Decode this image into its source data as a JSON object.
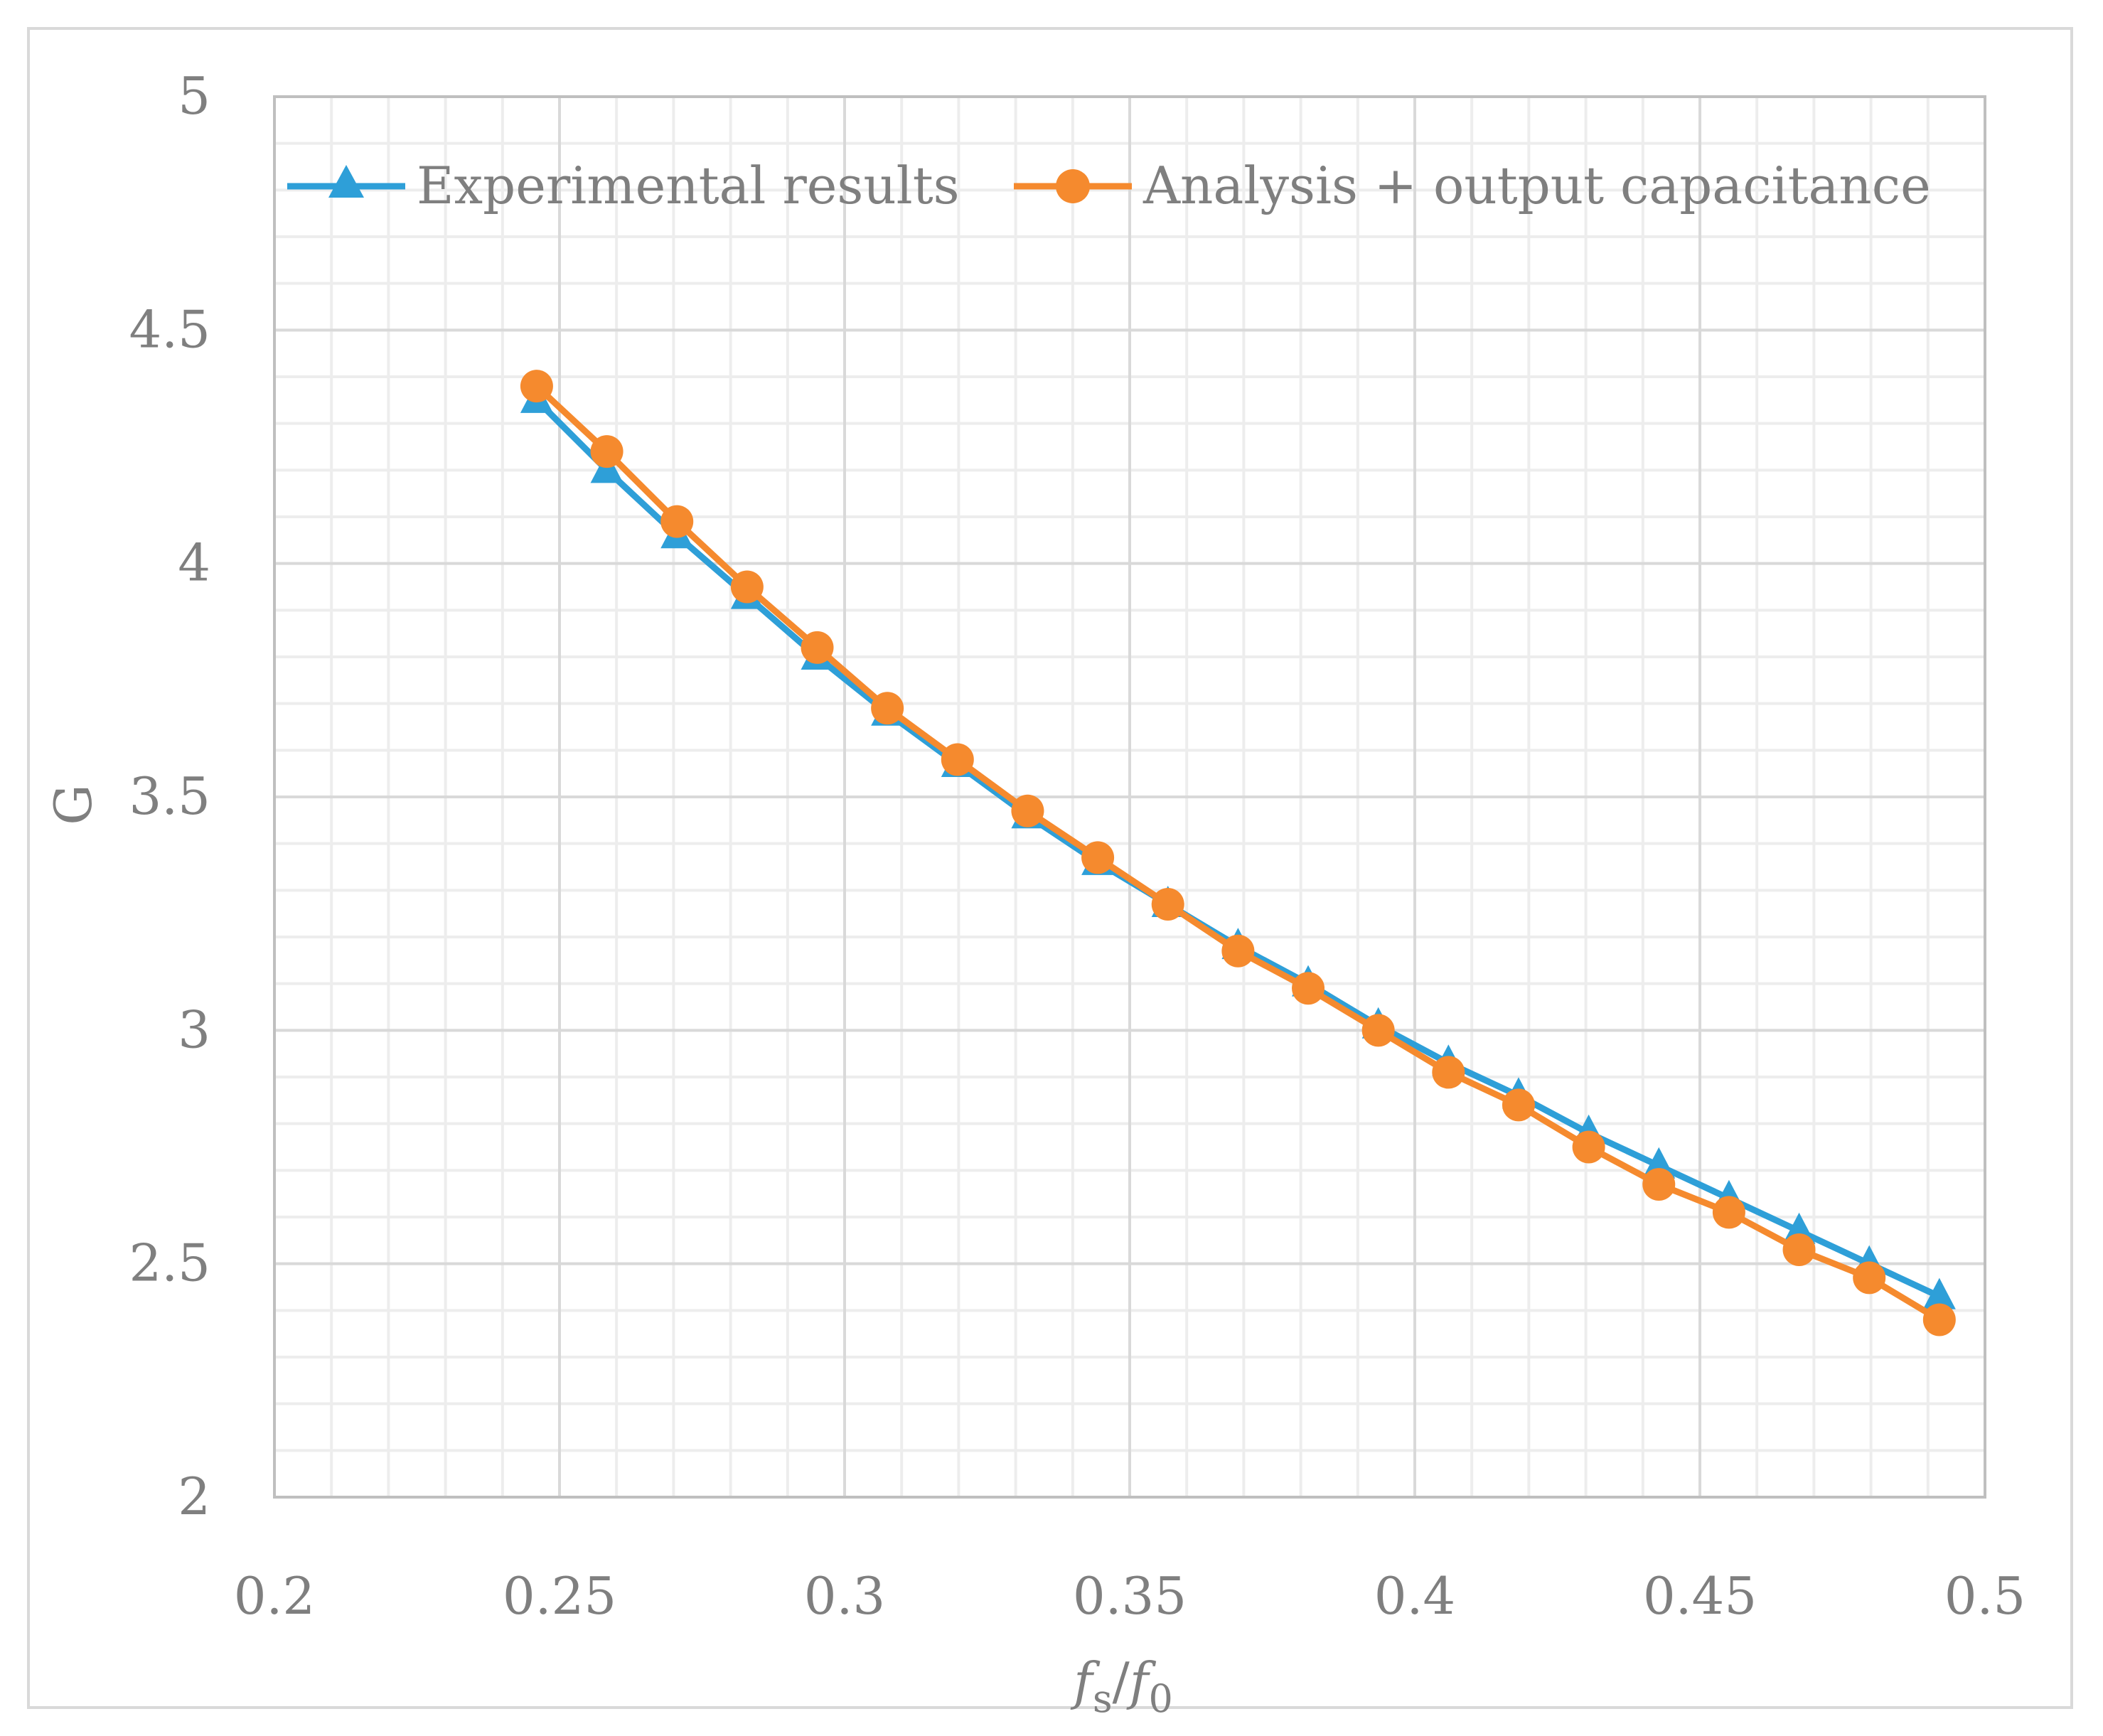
{
  "chart_data": {
    "type": "line",
    "title": "",
    "xlabel": "fs/f0",
    "xlabel_parts": {
      "base1": "f",
      "sub1": "s",
      "slash": "/",
      "base2": "f",
      "sub2": "0"
    },
    "ylabel": "G",
    "xlim": [
      0.2,
      0.5
    ],
    "ylim": [
      2,
      5
    ],
    "x_ticks": [
      0.2,
      0.25,
      0.3,
      0.35,
      0.4,
      0.45,
      0.5
    ],
    "x_tick_labels": [
      "0.2",
      "0.25",
      "0.3",
      "0.35",
      "0.4",
      "0.45",
      "0.5"
    ],
    "y_ticks": [
      2,
      2.5,
      3,
      3.5,
      4,
      4.5,
      5
    ],
    "y_tick_labels": [
      "2",
      "2.5",
      "3",
      "3.5",
      "4",
      "4.5",
      "5"
    ],
    "x_minor_step": 0.01,
    "y_minor_step": 0.1,
    "grid": true,
    "legend_position": "top",
    "series": [
      {
        "name": "Experimental results",
        "marker": "triangle",
        "color": "#2e9fd8",
        "x": [
          0.246,
          0.2583,
          0.2706,
          0.2829,
          0.2952,
          0.3075,
          0.3198,
          0.3321,
          0.3444,
          0.3567,
          0.369,
          0.3813,
          0.3936,
          0.4059,
          0.4182,
          0.4305,
          0.4428,
          0.4551,
          0.4674,
          0.4797,
          0.492
        ],
        "values": [
          4.35,
          4.2,
          4.06,
          3.93,
          3.8,
          3.68,
          3.57,
          3.46,
          3.36,
          3.27,
          3.18,
          3.1,
          3.01,
          2.93,
          2.86,
          2.78,
          2.71,
          2.64,
          2.57,
          2.5,
          2.43
        ]
      },
      {
        "name": "Analysis + output capacitance",
        "marker": "circle",
        "color": "#f58a2e",
        "x": [
          0.246,
          0.2583,
          0.2706,
          0.2829,
          0.2952,
          0.3075,
          0.3198,
          0.3321,
          0.3444,
          0.3567,
          0.369,
          0.3813,
          0.3936,
          0.4059,
          0.4182,
          0.4305,
          0.4428,
          0.4551,
          0.4674,
          0.4797,
          0.492
        ],
        "values": [
          4.38,
          4.24,
          4.09,
          3.95,
          3.82,
          3.69,
          3.58,
          3.47,
          3.37,
          3.27,
          3.17,
          3.09,
          3.0,
          2.91,
          2.84,
          2.75,
          2.67,
          2.61,
          2.53,
          2.47,
          2.38
        ]
      }
    ]
  }
}
